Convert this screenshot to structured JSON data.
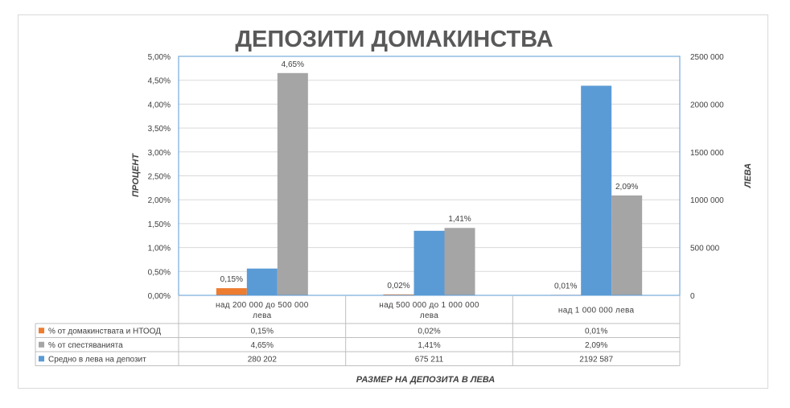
{
  "chart_data": {
    "type": "bar",
    "title": "ДЕПОЗИТИ ДОМАКИНСТВА",
    "xlabel": "РАЗМЕР НА ДЕПОЗИТА В ЛЕВА",
    "ylabel": "ПРОЦЕНТ",
    "y2label": "ЛЕВА",
    "ylim": [
      0,
      0.05
    ],
    "y2lim": [
      0,
      2500000
    ],
    "y_ticks": [
      "0,00%",
      "0,50%",
      "1,00%",
      "1,50%",
      "2,00%",
      "2,50%",
      "3,00%",
      "3,50%",
      "4,00%",
      "4,50%",
      "5,00%"
    ],
    "y2_ticks": [
      "0",
      "500 000",
      "1000 000",
      "1500 000",
      "2000 000",
      "2500 000"
    ],
    "categories": [
      [
        "над 200 000 до 500 000",
        "лева"
      ],
      [
        "над 500 000 до 1 000 000",
        "лева"
      ],
      [
        "над 1 000 000 лева"
      ]
    ],
    "series": [
      {
        "name": "% от домакинствата и НТООД",
        "axis": "left",
        "color": "#ED7D31",
        "values": [
          0.0015,
          0.0002,
          0.0001
        ],
        "labels": [
          "0,15%",
          "0,02%",
          "0,01%"
        ],
        "show_labels": true
      },
      {
        "name": "Средно в лева на депозит",
        "axis": "right",
        "color": "#5B9BD5",
        "values": [
          280202,
          675211,
          2192587
        ],
        "labels": [
          "280 202",
          "675 211",
          "2192 587"
        ],
        "show_labels": false
      },
      {
        "name": "% от спестяванията",
        "axis": "left",
        "color": "#A5A5A5",
        "values": [
          0.0465,
          0.0141,
          0.0209
        ],
        "labels": [
          "4,65%",
          "1,41%",
          "2,09%"
        ],
        "show_labels": true
      }
    ],
    "table_rows": [
      {
        "series_index": 0,
        "name": "% от домакинствата и НТООД",
        "cells": [
          "0,15%",
          "0,02%",
          "0,01%"
        ]
      },
      {
        "series_index": 2,
        "name": "% от спестяванията",
        "cells": [
          "4,65%",
          "1,41%",
          "2,09%"
        ]
      },
      {
        "series_index": 1,
        "name": "Средно в лева на депозит",
        "cells": [
          "280 202",
          "675 211",
          "2192 587"
        ]
      }
    ],
    "grid": true,
    "legend": "data-table"
  }
}
